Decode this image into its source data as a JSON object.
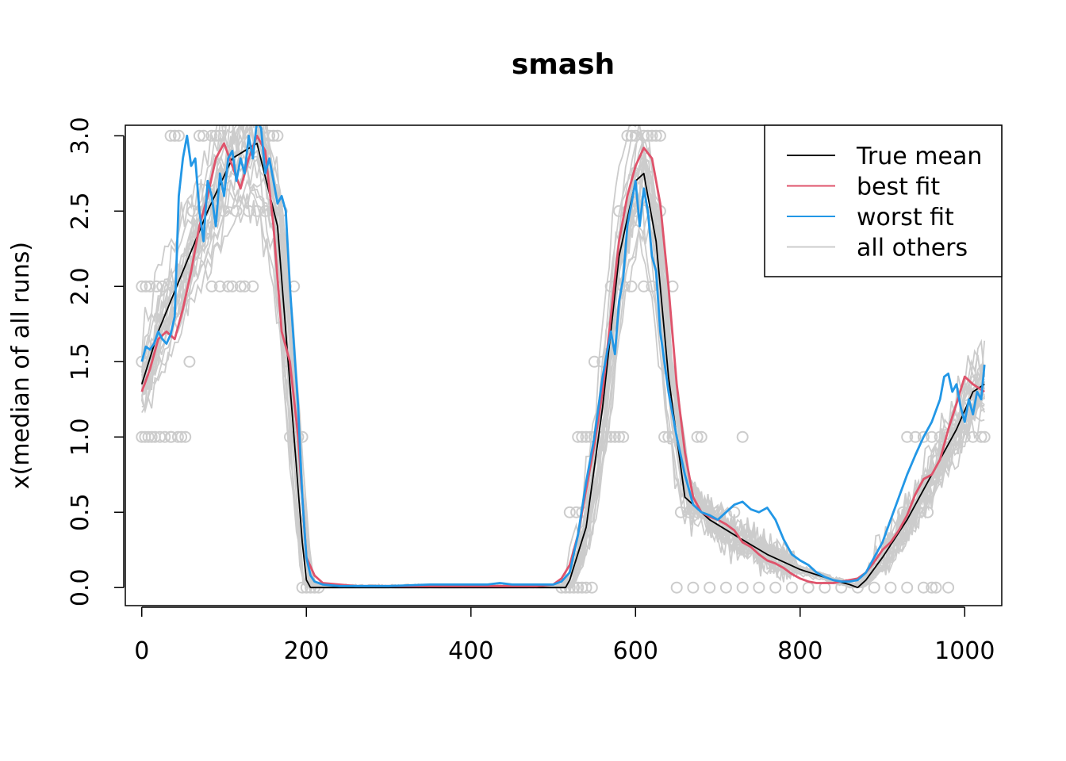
{
  "chart_data": {
    "type": "line",
    "title": "smash",
    "xlabel": "",
    "ylabel": "x(median of all runs)",
    "xlim": [
      -20,
      1045
    ],
    "ylim": [
      -0.12,
      3.07
    ],
    "x_ticks": [
      0,
      200,
      400,
      600,
      800,
      1000
    ],
    "y_ticks": [
      0.0,
      0.5,
      1.0,
      1.5,
      2.0,
      2.5,
      3.0
    ],
    "x_tick_labels": [
      "0",
      "200",
      "400",
      "600",
      "800",
      "1000"
    ],
    "y_tick_labels": [
      "0.0",
      "0.5",
      "1.0",
      "1.5",
      "2.0",
      "2.5",
      "3.0"
    ],
    "legend": {
      "position": "top-right",
      "entries": [
        {
          "label": "True mean",
          "color": "#000000"
        },
        {
          "label": "best fit",
          "color": "#DF536B"
        },
        {
          "label": "worst fit",
          "color": "#2297E6"
        },
        {
          "label": "all others",
          "color": "#CCCCCC"
        }
      ]
    },
    "series": [
      {
        "name": "True mean",
        "color": "#000000",
        "x": [
          0,
          20,
          50,
          80,
          110,
          140,
          165,
          185,
          195,
          200,
          205,
          400,
          515,
          520,
          540,
          560,
          580,
          600,
          610,
          625,
          640,
          660,
          690,
          720,
          760,
          800,
          840,
          860,
          870,
          880,
          900,
          930,
          960,
          990,
          1010,
          1024
        ],
        "y": [
          1.35,
          1.7,
          2.1,
          2.5,
          2.85,
          2.95,
          2.4,
          1.0,
          0.3,
          0.05,
          0.0,
          0.0,
          0.0,
          0.05,
          0.4,
          1.2,
          2.2,
          2.7,
          2.75,
          2.3,
          1.4,
          0.6,
          0.45,
          0.35,
          0.22,
          0.12,
          0.05,
          0.02,
          0.0,
          0.05,
          0.2,
          0.45,
          0.75,
          1.05,
          1.3,
          1.35
        ]
      },
      {
        "name": "best fit",
        "color": "#DF536B",
        "x": [
          0,
          10,
          20,
          30,
          40,
          50,
          60,
          70,
          80,
          90,
          100,
          110,
          120,
          130,
          140,
          150,
          160,
          170,
          180,
          190,
          200,
          210,
          220,
          240,
          260,
          300,
          400,
          480,
          500,
          510,
          520,
          530,
          540,
          550,
          560,
          570,
          580,
          590,
          600,
          610,
          620,
          630,
          640,
          650,
          660,
          670,
          680,
          690,
          700,
          710,
          720,
          730,
          740,
          750,
          760,
          770,
          780,
          790,
          800,
          810,
          820,
          830,
          840,
          850,
          860,
          870,
          880,
          890,
          900,
          910,
          920,
          930,
          940,
          950,
          960,
          970,
          980,
          990,
          1000,
          1010,
          1024
        ],
        "y": [
          1.3,
          1.45,
          1.65,
          1.7,
          1.65,
          1.85,
          2.1,
          2.4,
          2.6,
          2.85,
          2.95,
          2.8,
          2.65,
          2.85,
          3.0,
          2.9,
          2.4,
          1.7,
          1.5,
          1.0,
          0.2,
          0.08,
          0.03,
          0.02,
          0.01,
          0.01,
          0.01,
          0.01,
          0.02,
          0.06,
          0.15,
          0.35,
          0.65,
          0.95,
          1.3,
          1.8,
          2.3,
          2.6,
          2.8,
          2.92,
          2.85,
          2.55,
          2.0,
          1.35,
          0.9,
          0.6,
          0.5,
          0.47,
          0.45,
          0.42,
          0.38,
          0.3,
          0.27,
          0.22,
          0.18,
          0.16,
          0.13,
          0.09,
          0.06,
          0.04,
          0.03,
          0.03,
          0.03,
          0.04,
          0.05,
          0.06,
          0.1,
          0.17,
          0.25,
          0.3,
          0.38,
          0.48,
          0.62,
          0.72,
          0.75,
          0.85,
          1.05,
          1.22,
          1.4,
          1.35,
          1.3
        ]
      },
      {
        "name": "worst fit",
        "color": "#2297E6",
        "x": [
          0,
          5,
          10,
          15,
          20,
          25,
          30,
          35,
          40,
          45,
          50,
          55,
          60,
          65,
          70,
          75,
          80,
          85,
          90,
          95,
          100,
          105,
          110,
          115,
          120,
          125,
          130,
          135,
          140,
          145,
          150,
          155,
          160,
          165,
          170,
          175,
          180,
          185,
          190,
          195,
          200,
          205,
          210,
          220,
          240,
          260,
          300,
          350,
          400,
          420,
          435,
          450,
          480,
          500,
          510,
          520,
          530,
          540,
          550,
          555,
          560,
          565,
          570,
          575,
          580,
          585,
          590,
          595,
          600,
          605,
          610,
          615,
          620,
          625,
          630,
          640,
          650,
          660,
          670,
          680,
          690,
          700,
          710,
          720,
          730,
          740,
          750,
          760,
          770,
          780,
          790,
          800,
          810,
          820,
          830,
          840,
          850,
          860,
          870,
          880,
          890,
          900,
          910,
          920,
          930,
          940,
          950,
          960,
          970,
          975,
          980,
          985,
          990,
          995,
          1000,
          1005,
          1010,
          1015,
          1020,
          1024
        ],
        "y": [
          1.5,
          1.6,
          1.58,
          1.62,
          1.7,
          1.65,
          1.62,
          1.68,
          1.8,
          2.6,
          2.85,
          3.0,
          2.8,
          2.85,
          2.5,
          2.3,
          2.7,
          2.6,
          2.4,
          2.75,
          2.6,
          2.85,
          2.9,
          2.7,
          2.85,
          2.75,
          3.0,
          2.85,
          3.1,
          3.05,
          2.75,
          2.85,
          2.7,
          2.55,
          2.6,
          2.5,
          2.0,
          1.6,
          1.2,
          0.6,
          0.2,
          0.08,
          0.04,
          0.02,
          0.01,
          0.01,
          0.01,
          0.02,
          0.02,
          0.02,
          0.03,
          0.02,
          0.02,
          0.02,
          0.04,
          0.1,
          0.35,
          0.7,
          1.0,
          1.2,
          1.4,
          1.55,
          1.7,
          1.55,
          1.9,
          2.05,
          2.4,
          2.55,
          2.7,
          2.4,
          2.65,
          2.5,
          2.2,
          2.1,
          1.7,
          1.3,
          1.0,
          0.75,
          0.55,
          0.5,
          0.48,
          0.45,
          0.5,
          0.55,
          0.57,
          0.52,
          0.5,
          0.53,
          0.45,
          0.32,
          0.22,
          0.18,
          0.15,
          0.1,
          0.07,
          0.05,
          0.04,
          0.04,
          0.05,
          0.1,
          0.2,
          0.3,
          0.45,
          0.6,
          0.75,
          0.88,
          1.0,
          1.1,
          1.25,
          1.4,
          1.42,
          1.3,
          1.35,
          1.2,
          1.1,
          1.25,
          1.15,
          1.3,
          1.25,
          1.48
        ]
      }
    ],
    "other_runs": {
      "name": "all others",
      "color": "#CCCCCC",
      "count": 22,
      "description_levels": [
        0,
        0.5,
        1.0,
        1.5,
        2.0,
        2.5,
        3.0
      ]
    },
    "outlier_points": {
      "color": "#CCCCCC",
      "points": [
        [
          0,
          2.0
        ],
        [
          5,
          2.0
        ],
        [
          10,
          2.0
        ],
        [
          18,
          2.0
        ],
        [
          25,
          2.0
        ],
        [
          0,
          1.5
        ],
        [
          8,
          1.5
        ],
        [
          15,
          1.5
        ],
        [
          58,
          1.5
        ],
        [
          0,
          1.0
        ],
        [
          4,
          1.0
        ],
        [
          8,
          1.0
        ],
        [
          12,
          1.0
        ],
        [
          16,
          1.0
        ],
        [
          22,
          1.0
        ],
        [
          28,
          1.0
        ],
        [
          36,
          1.0
        ],
        [
          44,
          1.0
        ],
        [
          48,
          1.0
        ],
        [
          53,
          1.0
        ],
        [
          35,
          1.0
        ],
        [
          85,
          2.0
        ],
        [
          95,
          2.0
        ],
        [
          105,
          2.0
        ],
        [
          110,
          2.0
        ],
        [
          120,
          2.0
        ],
        [
          125,
          2.0
        ],
        [
          135,
          2.0
        ],
        [
          170,
          2.0
        ],
        [
          185,
          2.0
        ],
        [
          175,
          2.0
        ],
        [
          62,
          2.5
        ],
        [
          75,
          2.5
        ],
        [
          90,
          2.5
        ],
        [
          100,
          2.5
        ],
        [
          115,
          2.5
        ],
        [
          130,
          2.5
        ],
        [
          140,
          2.5
        ],
        [
          150,
          2.5
        ],
        [
          160,
          2.5
        ],
        [
          170,
          2.5
        ],
        [
          35,
          3.0
        ],
        [
          40,
          3.0
        ],
        [
          45,
          3.0
        ],
        [
          70,
          3.0
        ],
        [
          75,
          3.0
        ],
        [
          85,
          3.0
        ],
        [
          90,
          3.0
        ],
        [
          95,
          3.0
        ],
        [
          155,
          3.0
        ],
        [
          160,
          3.0
        ],
        [
          165,
          3.0
        ],
        [
          180,
          1.0
        ],
        [
          185,
          1.0
        ],
        [
          190,
          1.0
        ],
        [
          195,
          1.0
        ],
        [
          178,
          1.5
        ],
        [
          195,
          0.0
        ],
        [
          200,
          0.0
        ],
        [
          205,
          0.0
        ],
        [
          210,
          0.0
        ],
        [
          215,
          0.0
        ],
        [
          510,
          0.0
        ],
        [
          515,
          0.0
        ],
        [
          520,
          0.0
        ],
        [
          525,
          0.0
        ],
        [
          530,
          0.0
        ],
        [
          535,
          0.0
        ],
        [
          540,
          0.0
        ],
        [
          547,
          0.0
        ],
        [
          520,
          0.5
        ],
        [
          528,
          0.5
        ],
        [
          535,
          0.5
        ],
        [
          540,
          0.5
        ],
        [
          530,
          1.0
        ],
        [
          535,
          1.0
        ],
        [
          540,
          1.0
        ],
        [
          545,
          1.0
        ],
        [
          550,
          1.0
        ],
        [
          555,
          1.0
        ],
        [
          560,
          1.0
        ],
        [
          565,
          1.0
        ],
        [
          570,
          1.0
        ],
        [
          575,
          1.0
        ],
        [
          580,
          1.0
        ],
        [
          585,
          1.0
        ],
        [
          550,
          1.5
        ],
        [
          560,
          1.5
        ],
        [
          570,
          2.0
        ],
        [
          585,
          2.0
        ],
        [
          595,
          2.0
        ],
        [
          610,
          2.0
        ],
        [
          620,
          2.0
        ],
        [
          630,
          2.0
        ],
        [
          645,
          2.0
        ],
        [
          580,
          2.5
        ],
        [
          590,
          2.5
        ],
        [
          600,
          2.5
        ],
        [
          620,
          2.5
        ],
        [
          630,
          2.5
        ],
        [
          590,
          3.0
        ],
        [
          595,
          3.0
        ],
        [
          600,
          3.0
        ],
        [
          610,
          3.0
        ],
        [
          615,
          3.0
        ],
        [
          620,
          3.0
        ],
        [
          625,
          3.0
        ],
        [
          630,
          3.0
        ],
        [
          635,
          1.0
        ],
        [
          640,
          1.0
        ],
        [
          645,
          1.0
        ],
        [
          675,
          1.0
        ],
        [
          680,
          1.0
        ],
        [
          730,
          1.0
        ],
        [
          655,
          0.5
        ],
        [
          665,
          0.5
        ],
        [
          675,
          0.5
        ],
        [
          690,
          0.5
        ],
        [
          700,
          0.5
        ],
        [
          720,
          0.5
        ],
        [
          650,
          0.0
        ],
        [
          670,
          0.0
        ],
        [
          690,
          0.0
        ],
        [
          710,
          0.0
        ],
        [
          730,
          0.0
        ],
        [
          750,
          0.0
        ],
        [
          770,
          0.0
        ],
        [
          790,
          0.0
        ],
        [
          810,
          0.0
        ],
        [
          830,
          0.0
        ],
        [
          850,
          0.0
        ],
        [
          870,
          0.0
        ],
        [
          890,
          0.0
        ],
        [
          910,
          0.0
        ],
        [
          930,
          0.0
        ],
        [
          950,
          0.0
        ],
        [
          960,
          0.0
        ],
        [
          965,
          0.0
        ],
        [
          980,
          0.0
        ],
        [
          925,
          0.5
        ],
        [
          935,
          0.5
        ],
        [
          945,
          0.5
        ],
        [
          955,
          0.5
        ],
        [
          930,
          1.0
        ],
        [
          940,
          1.0
        ],
        [
          950,
          1.0
        ],
        [
          960,
          1.0
        ],
        [
          970,
          1.0
        ],
        [
          980,
          1.0
        ],
        [
          990,
          1.0
        ],
        [
          1000,
          1.0
        ],
        [
          1010,
          1.0
        ],
        [
          1020,
          1.0
        ],
        [
          1024,
          1.0
        ]
      ]
    }
  }
}
